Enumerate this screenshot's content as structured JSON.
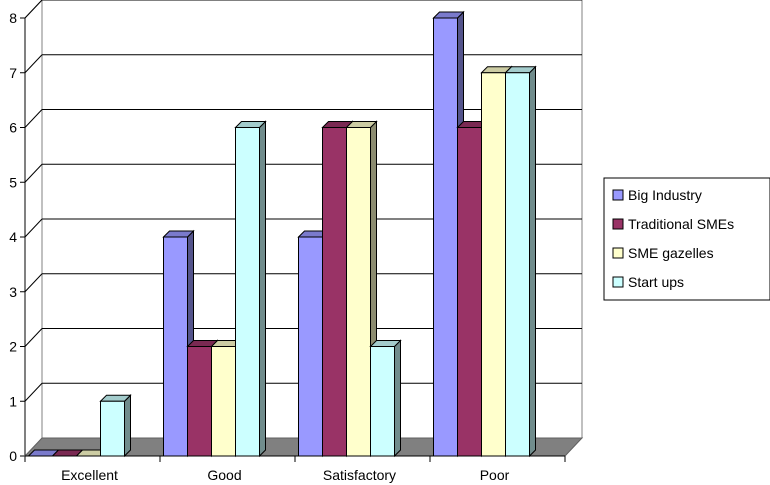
{
  "chart_data": {
    "type": "bar",
    "title": "",
    "xlabel": "",
    "ylabel": "",
    "ylim": [
      0,
      8
    ],
    "yticks": [
      "0",
      "1",
      "2",
      "3",
      "4",
      "5",
      "6",
      "7",
      "8"
    ],
    "grid": true,
    "legend_position": "right",
    "categories": [
      "Excellent",
      "Good",
      "Satisfactory",
      "Poor"
    ],
    "series": [
      {
        "name": "Big Industry",
        "values": [
          0,
          4,
          4,
          8
        ],
        "color": "#9999ff"
      },
      {
        "name": "Traditional SMEs",
        "values": [
          0,
          2,
          6,
          6
        ],
        "color": "#993366"
      },
      {
        "name": "SME gazelles",
        "values": [
          0,
          2,
          6,
          7
        ],
        "color": "#ffffcc"
      },
      {
        "name": "Start ups",
        "values": [
          1,
          6,
          2,
          7
        ],
        "color": "#ccffff"
      }
    ]
  }
}
